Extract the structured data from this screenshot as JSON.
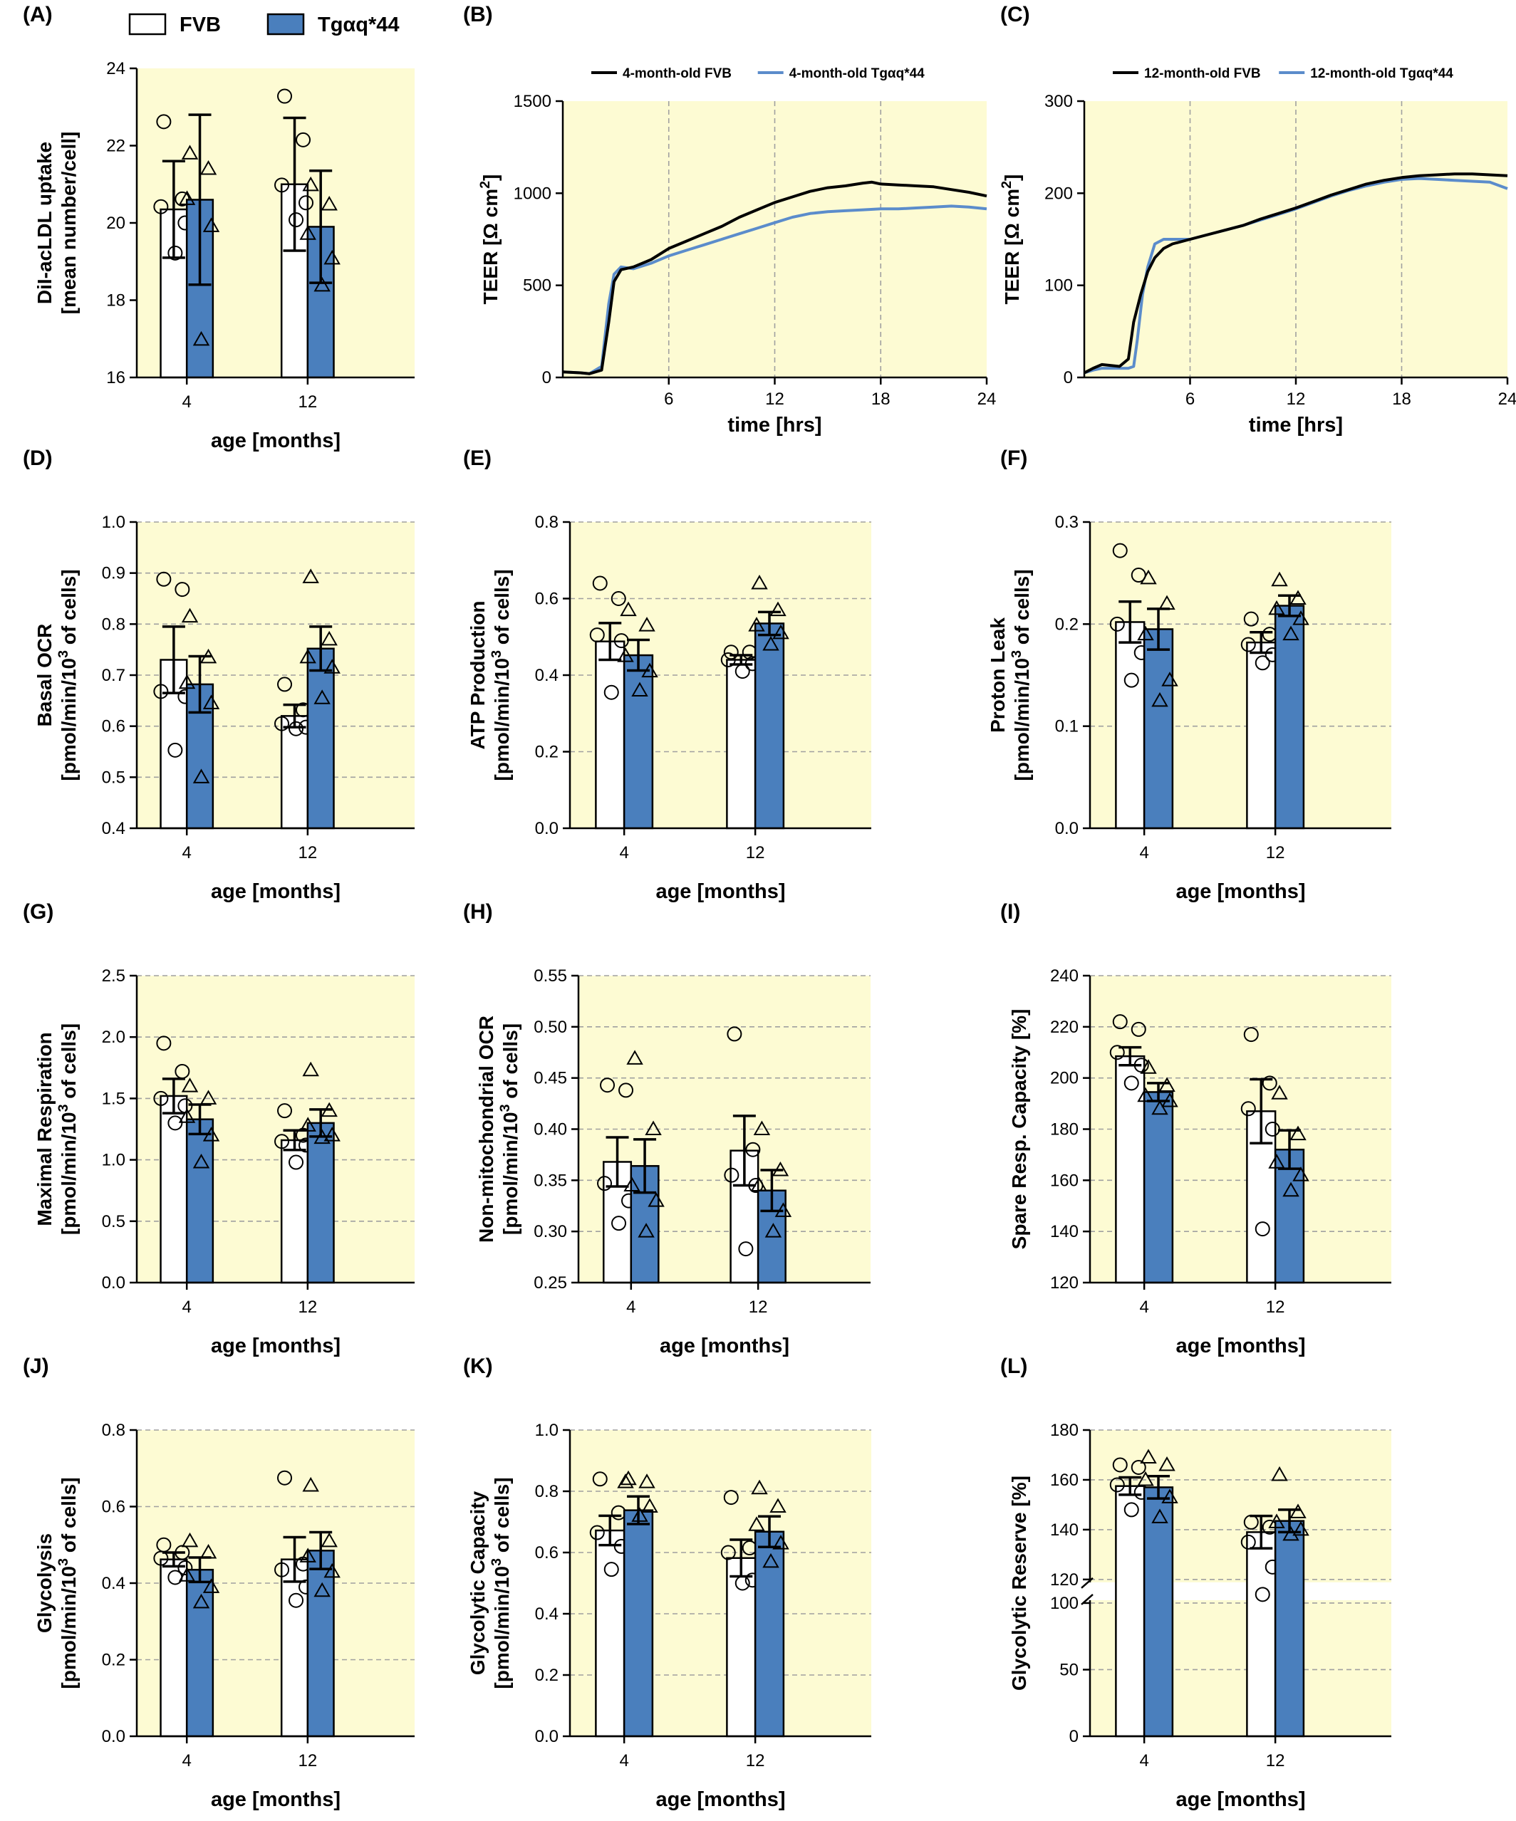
{
  "legend": {
    "fvb": "FVB",
    "tg": "Tgαq*44"
  },
  "colors": {
    "fvb": "#ffffff",
    "tg": "#4a7fbd",
    "background": "#fdfbd3",
    "fvb_line": "#000000",
    "tg_line": "#5b8ccb"
  },
  "chart_data": [
    {
      "id": "A",
      "letter": "(A)",
      "type": "bar",
      "ylabel_lines": [
        "DiI-acLDL uptake",
        "[mean number/cell]"
      ],
      "xlabel": "age [months]",
      "categories": [
        "4",
        "12"
      ],
      "ylim": [
        16,
        24
      ],
      "yticks": [
        "16",
        "18",
        "20",
        "22",
        "24"
      ],
      "grid": false,
      "series": [
        {
          "name": "FVB",
          "values": [
            20.35,
            21.0
          ],
          "errors": [
            1.25,
            1.72
          ],
          "points": [
            [
              22.62,
              20.62,
              20.42,
              20.0,
              19.22
            ],
            [
              23.28,
              22.15,
              20.98,
              20.52,
              20.08
            ]
          ]
        },
        {
          "name": "Tgαq*44",
          "values": [
            20.6,
            19.9
          ],
          "errors": [
            2.2,
            1.45
          ],
          "points": [
            [
              21.8,
              21.4,
              20.62,
              19.92,
              16.98
            ],
            [
              20.98,
              20.48,
              19.72,
              19.08,
              18.38
            ]
          ]
        }
      ]
    },
    {
      "id": "B",
      "letter": "(B)",
      "type": "line",
      "ylabel": "TEER [Ω cm²]",
      "xlabel": "time [hrs]",
      "xlim": [
        0,
        24
      ],
      "xticks": [
        "6",
        "12",
        "18",
        "24"
      ],
      "ylim": [
        0,
        1500
      ],
      "yticks": [
        "0",
        "500",
        "1000",
        "1500"
      ],
      "grid": true,
      "series": [
        {
          "name": "4-month-old FVB",
          "x": [
            0,
            1,
            1.5,
            2.2,
            2.6,
            2.9,
            3.3,
            4,
            5,
            6,
            7,
            8,
            9,
            10,
            11,
            12,
            13,
            14,
            15,
            16,
            17,
            17.5,
            18,
            19,
            20,
            21,
            22,
            23,
            24
          ],
          "y": [
            30,
            25,
            20,
            40,
            300,
            520,
            585,
            600,
            640,
            700,
            740,
            780,
            820,
            870,
            910,
            950,
            980,
            1010,
            1030,
            1040,
            1055,
            1060,
            1050,
            1045,
            1040,
            1035,
            1020,
            1005,
            985
          ]
        },
        {
          "name": "4-month-old Tgαq*44",
          "x": [
            0,
            1,
            1.5,
            2.2,
            2.6,
            2.9,
            3.3,
            4,
            5,
            6,
            7,
            8,
            9,
            10,
            11,
            12,
            13,
            14,
            15,
            16,
            17,
            18,
            19,
            20,
            21,
            22,
            23,
            24
          ],
          "y": [
            30,
            25,
            20,
            60,
            400,
            560,
            600,
            590,
            620,
            660,
            690,
            720,
            750,
            780,
            810,
            840,
            870,
            890,
            900,
            905,
            910,
            915,
            915,
            920,
            925,
            930,
            925,
            915
          ]
        }
      ]
    },
    {
      "id": "C",
      "letter": "(C)",
      "type": "line",
      "ylabel": "TEER [Ω cm²]",
      "xlabel": "time [hrs]",
      "xlim": [
        0,
        24
      ],
      "xticks": [
        "6",
        "12",
        "18",
        "24"
      ],
      "ylim": [
        0,
        300
      ],
      "yticks": [
        "0",
        "100",
        "200",
        "300"
      ],
      "grid": true,
      "series": [
        {
          "name": "12-month-old FVB",
          "x": [
            0,
            0.5,
            1,
            2,
            2.5,
            2.8,
            3.2,
            3.6,
            4,
            4.5,
            5,
            6,
            7,
            8,
            9,
            10,
            11,
            12,
            13,
            14,
            15,
            16,
            17,
            18,
            19,
            20,
            21,
            22,
            23,
            24
          ],
          "y": [
            5,
            10,
            14,
            12,
            20,
            60,
            90,
            115,
            130,
            140,
            145,
            150,
            155,
            160,
            165,
            172,
            178,
            184,
            191,
            198,
            204,
            210,
            214,
            217,
            219,
            220,
            221,
            221,
            220,
            219
          ]
        },
        {
          "name": "12-month-old Tgαq*44",
          "x": [
            0,
            0.5,
            1,
            2,
            2.5,
            2.8,
            3,
            3.3,
            3.6,
            4,
            4.5,
            5,
            6,
            7,
            8,
            9,
            10,
            11,
            12,
            13,
            14,
            15,
            16,
            17,
            18,
            19,
            20,
            21,
            22,
            23,
            24
          ],
          "y": [
            5,
            8,
            10,
            10,
            10,
            12,
            40,
            90,
            120,
            145,
            150,
            150,
            150,
            155,
            160,
            165,
            171,
            177,
            183,
            190,
            197,
            203,
            208,
            212,
            215,
            216,
            215,
            214,
            213,
            212,
            205
          ]
        }
      ]
    },
    {
      "id": "D",
      "letter": "(D)",
      "type": "bar",
      "ylabel_lines": [
        "Basal OCR",
        "[pmol/min/10³ of cells]"
      ],
      "xlabel": "age [months]",
      "categories": [
        "4",
        "12"
      ],
      "ylim": [
        0.4,
        1.0
      ],
      "yticks": [
        "0.4",
        "0.5",
        "0.6",
        "0.7",
        "0.8",
        "0.9",
        "1.0"
      ],
      "grid": true,
      "series": [
        {
          "name": "FVB",
          "values": [
            0.73,
            0.62
          ],
          "errors": [
            0.065,
            0.022
          ],
          "points": [
            [
              0.888,
              0.868,
              0.668,
              0.658,
              0.553
            ],
            [
              0.682,
              0.632,
              0.605,
              0.598,
              0.595
            ]
          ]
        },
        {
          "name": "Tgαq*44",
          "values": [
            0.682,
            0.752
          ],
          "errors": [
            0.055,
            0.043
          ],
          "points": [
            [
              0.815,
              0.735,
              0.685,
              0.645,
              0.5
            ],
            [
              0.892,
              0.77,
              0.735,
              0.715,
              0.655
            ]
          ]
        }
      ]
    },
    {
      "id": "E",
      "letter": "(E)",
      "type": "bar",
      "ylabel_lines": [
        "ATP Production",
        "[pmol/min/10³ of cells]"
      ],
      "xlabel": "age [months]",
      "categories": [
        "4",
        "12"
      ],
      "ylim": [
        0.0,
        0.8
      ],
      "yticks": [
        "0.0",
        "0.2",
        "0.4",
        "0.6",
        "0.8"
      ],
      "grid": true,
      "series": [
        {
          "name": "FVB",
          "values": [
            0.488,
            0.44
          ],
          "errors": [
            0.048,
            0.012
          ],
          "points": [
            [
              0.64,
              0.6,
              0.505,
              0.49,
              0.355
            ],
            [
              0.46,
              0.46,
              0.44,
              0.43,
              0.41
            ]
          ]
        },
        {
          "name": "Tgαq*44",
          "values": [
            0.452,
            0.535
          ],
          "errors": [
            0.04,
            0.03
          ],
          "points": [
            [
              0.57,
              0.53,
              0.45,
              0.41,
              0.36
            ],
            [
              0.64,
              0.57,
              0.53,
              0.51,
              0.48
            ]
          ]
        }
      ]
    },
    {
      "id": "F",
      "letter": "(F)",
      "type": "bar",
      "ylabel_lines": [
        "Proton Leak",
        "[pmol/min/10³ of cells]"
      ],
      "xlabel": "age [months]",
      "categories": [
        "4",
        "12"
      ],
      "ylim": [
        0.0,
        0.3
      ],
      "yticks": [
        "0.0",
        "0.1",
        "0.2",
        "0.3"
      ],
      "grid": true,
      "series": [
        {
          "name": "FVB",
          "values": [
            0.202,
            0.182
          ],
          "errors": [
            0.02,
            0.01
          ],
          "points": [
            [
              0.272,
              0.248,
              0.2,
              0.172,
              0.145
            ],
            [
              0.205,
              0.19,
              0.18,
              0.17,
              0.162
            ]
          ]
        },
        {
          "name": "Tgαq*44",
          "values": [
            0.195,
            0.218
          ],
          "errors": [
            0.02,
            0.01
          ],
          "points": [
            [
              0.245,
              0.22,
              0.19,
              0.145,
              0.125
            ],
            [
              0.243,
              0.225,
              0.215,
              0.205,
              0.19
            ]
          ]
        }
      ]
    },
    {
      "id": "G",
      "letter": "(G)",
      "type": "bar",
      "ylabel_lines": [
        "Maximal Respiration",
        "[pmol/min/10³ of cells]"
      ],
      "xlabel": "age [months]",
      "categories": [
        "4",
        "12"
      ],
      "ylim": [
        0.0,
        2.5
      ],
      "yticks": [
        "0.0",
        "0.5",
        "1.0",
        "1.5",
        "2.0",
        "2.5"
      ],
      "grid": true,
      "series": [
        {
          "name": "FVB",
          "values": [
            1.52,
            1.16
          ],
          "errors": [
            0.14,
            0.08
          ],
          "points": [
            [
              1.95,
              1.72,
              1.5,
              1.44,
              1.3
            ],
            [
              1.4,
              1.2,
              1.15,
              1.12,
              0.98
            ]
          ]
        },
        {
          "name": "Tgαq*44",
          "values": [
            1.33,
            1.3
          ],
          "errors": [
            0.12,
            0.11
          ],
          "points": [
            [
              1.6,
              1.5,
              1.35,
              1.2,
              0.98
            ],
            [
              1.73,
              1.4,
              1.28,
              1.2,
              1.18
            ]
          ]
        }
      ]
    },
    {
      "id": "H",
      "letter": "(H)",
      "type": "bar",
      "ylabel_lines": [
        "Non-mitochondrial OCR",
        "[pmol/min/10³ of cells]"
      ],
      "xlabel": "age [months]",
      "categories": [
        "4",
        "12"
      ],
      "ylim": [
        0.25,
        0.55
      ],
      "yticks": [
        "0.25",
        "0.30",
        "0.35",
        "0.40",
        "0.45",
        "0.50",
        "0.55"
      ],
      "grid": true,
      "series": [
        {
          "name": "FVB",
          "values": [
            0.368,
            0.379
          ],
          "errors": [
            0.024,
            0.034
          ],
          "points": [
            [
              0.443,
              0.438,
              0.347,
              0.33,
              0.308
            ],
            [
              0.493,
              0.38,
              0.355,
              0.345,
              0.283
            ]
          ]
        },
        {
          "name": "Tgαq*44",
          "values": [
            0.364,
            0.34
          ],
          "errors": [
            0.026,
            0.02
          ],
          "points": [
            [
              0.469,
              0.4,
              0.345,
              0.33,
              0.3
            ],
            [
              0.4,
              0.36,
              0.345,
              0.32,
              0.3
            ]
          ]
        }
      ]
    },
    {
      "id": "I",
      "letter": "(I)",
      "type": "bar",
      "ylabel_lines": [
        "Spare Resp. Capacity  [%]"
      ],
      "xlabel": "age [months]",
      "categories": [
        "4",
        "12"
      ],
      "ylim": [
        120,
        240
      ],
      "yticks": [
        "120",
        "140",
        "160",
        "180",
        "200",
        "220",
        "240"
      ],
      "grid": true,
      "series": [
        {
          "name": "FVB",
          "values": [
            208.5,
            187
          ],
          "errors": [
            3.5,
            12.5
          ],
          "points": [
            [
              222,
              219,
              210,
              205,
              198
            ],
            [
              217,
              198,
              188,
              180,
              141
            ]
          ]
        },
        {
          "name": "Tgαq*44",
          "values": [
            194.5,
            172
          ],
          "errors": [
            3.5,
            7.5
          ],
          "points": [
            [
              204,
              197,
              193,
              191,
              188
            ],
            [
              194,
              178,
              167,
              162,
              156
            ]
          ]
        }
      ]
    },
    {
      "id": "J",
      "letter": "(J)",
      "type": "bar",
      "ylabel_lines": [
        "Glycolysis",
        "[pmol/min/10³ of cells]"
      ],
      "xlabel": "age [months]",
      "categories": [
        "4",
        "12"
      ],
      "ylim": [
        0.0,
        0.8
      ],
      "yticks": [
        "0.0",
        "0.2",
        "0.4",
        "0.6",
        "0.8"
      ],
      "grid": true,
      "series": [
        {
          "name": "FVB",
          "values": [
            0.462,
            0.462
          ],
          "errors": [
            0.018,
            0.058
          ],
          "points": [
            [
              0.5,
              0.48,
              0.465,
              0.44,
              0.415
            ],
            [
              0.675,
              0.45,
              0.435,
              0.39,
              0.355
            ]
          ]
        },
        {
          "name": "Tgαq*44",
          "values": [
            0.435,
            0.485
          ],
          "errors": [
            0.032,
            0.048
          ],
          "points": [
            [
              0.51,
              0.48,
              0.42,
              0.39,
              0.35
            ],
            [
              0.655,
              0.51,
              0.47,
              0.43,
              0.38
            ]
          ]
        }
      ]
    },
    {
      "id": "K",
      "letter": "(K)",
      "type": "bar",
      "ylabel_lines": [
        "Glycolytic Capacity",
        "[pmol/min/10³ of cells]"
      ],
      "xlabel": "age [months]",
      "categories": [
        "4",
        "12"
      ],
      "ylim": [
        0.0,
        1.0
      ],
      "yticks": [
        "0.0",
        "0.2",
        "0.4",
        "0.6",
        "0.8",
        "1.0"
      ],
      "grid": true,
      "series": [
        {
          "name": "FVB",
          "values": [
            0.672,
            0.582
          ],
          "errors": [
            0.048,
            0.06
          ],
          "points": [
            [
              0.84,
              0.73,
              0.665,
              0.62,
              0.545
            ],
            [
              0.78,
              0.615,
              0.6,
              0.51,
              0.5
            ]
          ]
        },
        {
          "name": "Tgαq*44",
          "values": [
            0.738,
            0.668
          ],
          "errors": [
            0.045,
            0.05
          ],
          "points": [
            [
              0.84,
              0.83,
              0.83,
              0.75,
              0.72
            ],
            [
              0.81,
              0.75,
              0.69,
              0.63,
              0.57
            ]
          ]
        }
      ]
    },
    {
      "id": "L",
      "letter": "(L)",
      "type": "bar",
      "ylabel_lines": [
        "Glycolytic Reserve  [%]"
      ],
      "xlabel": "age [months]",
      "categories": [
        "4",
        "12"
      ],
      "ylim": [
        0,
        180
      ],
      "axis_break": [
        100,
        120
      ],
      "yticks": [
        "0",
        "50",
        "100",
        "120",
        "140",
        "160",
        "180"
      ],
      "grid": true,
      "series": [
        {
          "name": "FVB",
          "values": [
            157.5,
            139
          ],
          "errors": [
            3.5,
            6.5
          ],
          "points": [
            [
              166,
              165,
              158,
              155,
              148
            ],
            [
              143,
              141,
              135,
              125,
              114
            ]
          ]
        },
        {
          "name": "Tgαq*44",
          "values": [
            157,
            143.5
          ],
          "errors": [
            4.5,
            4.5
          ],
          "points": [
            [
              169,
              166,
              160,
              153,
              145
            ],
            [
              162,
              147,
              143,
              140,
              138
            ]
          ]
        }
      ]
    }
  ]
}
